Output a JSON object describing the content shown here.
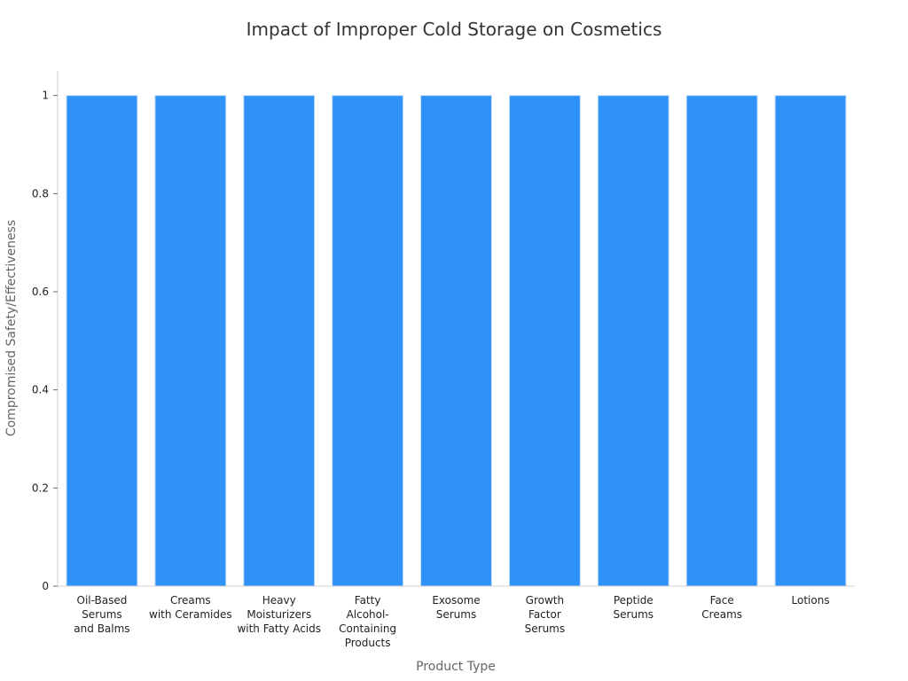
{
  "chart_data": {
    "type": "bar",
    "title": "Impact of Improper Cold Storage on Cosmetics",
    "xlabel": "Product Type",
    "ylabel": "Compromised Safety/Effectiveness",
    "categories": [
      [
        "Oil-Based",
        "Serums",
        "and Balms"
      ],
      [
        "Creams",
        "with Ceramides"
      ],
      [
        "Heavy",
        "Moisturizers",
        "with Fatty Acids"
      ],
      [
        "Fatty",
        "Alcohol-",
        "Containing",
        "Products"
      ],
      [
        "Exosome",
        "Serums"
      ],
      [
        "Growth",
        "Factor",
        "Serums"
      ],
      [
        "Peptide",
        "Serums"
      ],
      [
        "Face",
        "Creams"
      ],
      [
        "Lotions"
      ]
    ],
    "values": [
      1,
      1,
      1,
      1,
      1,
      1,
      1,
      1,
      1
    ],
    "ylim": [
      0,
      1.05
    ],
    "yticks": [
      "0",
      "0.2",
      "0.4",
      "0.6",
      "0.8",
      "1"
    ],
    "ytick_values": [
      0,
      0.2,
      0.4,
      0.6,
      0.8,
      1
    ],
    "grid": false,
    "legend": "none",
    "colors": {
      "bar": "#2f92f8",
      "bar_edge": "#c9def5"
    }
  }
}
